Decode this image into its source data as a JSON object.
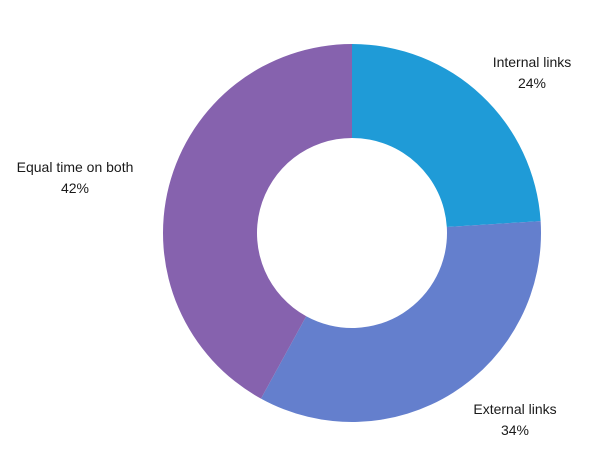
{
  "chart_data": {
    "type": "pie",
    "style": "donut",
    "title": "",
    "slices": [
      {
        "label": "Internal links",
        "value": 24,
        "value_label": "24%",
        "color": "#1f9bd7"
      },
      {
        "label": "External links",
        "value": 34,
        "value_label": "34%",
        "color": "#647fcd"
      },
      {
        "label": "Equal time on both",
        "value": 42,
        "value_label": "42%",
        "color": "#8662ae"
      }
    ],
    "legend": "none",
    "labels": "outside"
  }
}
